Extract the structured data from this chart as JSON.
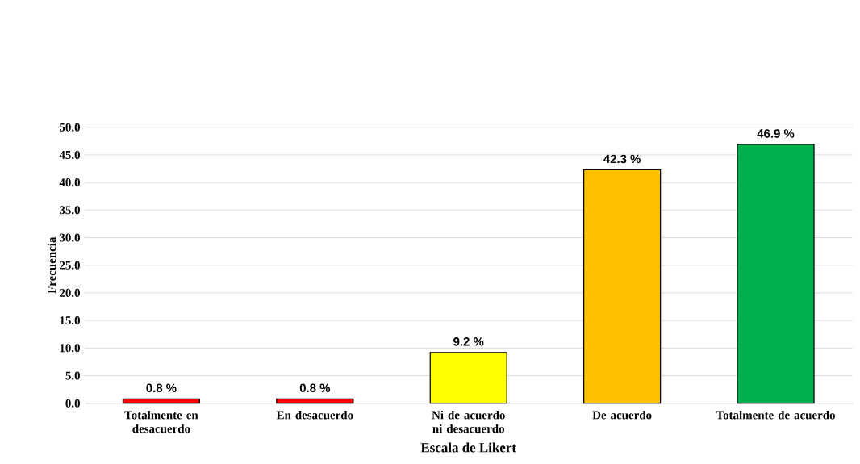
{
  "chart_data": {
    "type": "bar",
    "xlabel": "Escala de Likert",
    "ylabel": "Frecuencia",
    "categories": [
      "Totalmente en desacuerdo",
      "En desacuerdo",
      "Ni de acuerdo ni desacuerdo",
      "De acuerdo",
      "Totalmente de acuerdo"
    ],
    "values": [
      0.8,
      0.8,
      9.2,
      42.3,
      46.9
    ],
    "colors": [
      "#ff0000",
      "#ff0000",
      "#ffff00",
      "#ffc000",
      "#00b050"
    ],
    "value_labels": [
      "0.8 %",
      "0.8 %",
      "9.2 %",
      "42.3 %",
      "46.9 %"
    ],
    "ylim": [
      0,
      50
    ],
    "yticks": [
      {
        "value": 0,
        "label": "0.0"
      },
      {
        "value": 5,
        "label": "5.0"
      },
      {
        "value": 10,
        "label": "10.0"
      },
      {
        "value": 15,
        "label": "15.0"
      },
      {
        "value": 20,
        "label": "20.0"
      },
      {
        "value": 25,
        "label": "25.0"
      },
      {
        "value": 30,
        "label": "30.0"
      },
      {
        "value": 35,
        "label": "35.0"
      },
      {
        "value": 40,
        "label": "40.0"
      },
      {
        "value": 45,
        "label": "45.0"
      },
      {
        "value": 50,
        "label": "50.0"
      }
    ],
    "grid": "y"
  }
}
